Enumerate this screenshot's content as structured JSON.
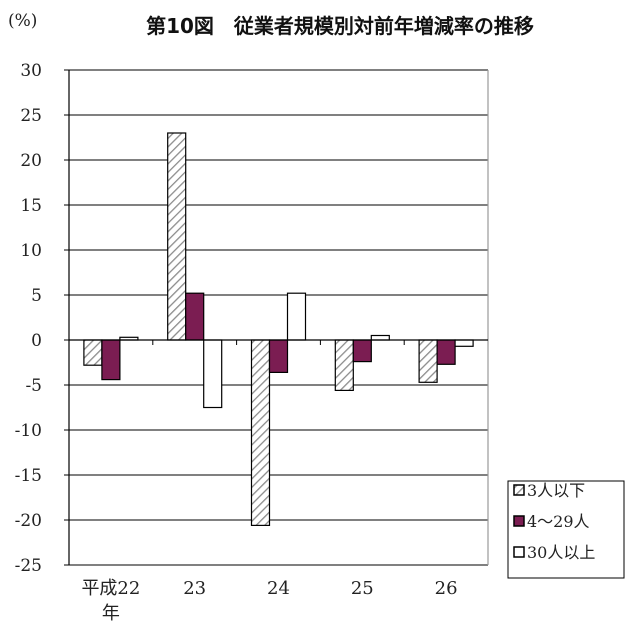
{
  "chart_data": {
    "type": "bar",
    "title": "第10図　従業者規模別対前年増減率の推移",
    "unit_label": "(%)",
    "categories": [
      "平成22\n年",
      "23",
      "24",
      "25",
      "26"
    ],
    "ylim": [
      -25,
      30
    ],
    "y_ticks": [
      "30",
      "25",
      "20",
      "15",
      "10",
      "5",
      "0",
      "-5",
      "-10",
      "-15",
      "-20",
      "-25"
    ],
    "grid": "horizontal",
    "legend_position": "bottom-right",
    "series": [
      {
        "name": "3人以下",
        "values": [
          -2.8,
          23.0,
          -20.6,
          -5.6,
          -4.7
        ],
        "fill": "hatch",
        "color": "#ffffff"
      },
      {
        "name": "4〜29人",
        "values": [
          -4.4,
          5.2,
          -3.6,
          -2.4,
          -2.7
        ],
        "fill": "solid",
        "color": "#7b1d52"
      },
      {
        "name": "30人以上",
        "values": [
          0.3,
          -7.5,
          5.2,
          0.5,
          -0.7
        ],
        "fill": "solid",
        "color": "#ffffff"
      }
    ]
  }
}
